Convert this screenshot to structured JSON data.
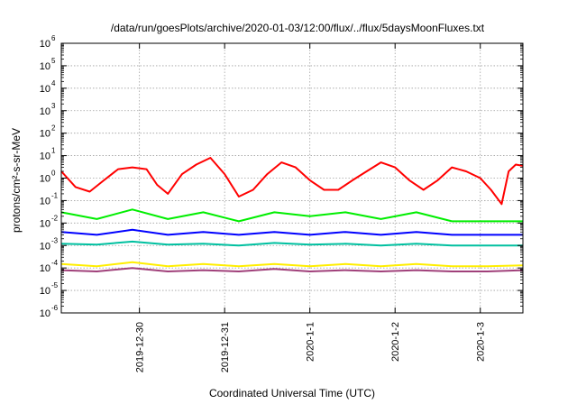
{
  "chart_data": {
    "type": "line",
    "title": "/data/run/goesPlots/archive/2020-01-03/12:00/flux/../flux/5daysMoonFluxes.txt",
    "xlabel": "Coordinated Universal Time (UTC)",
    "ylabel": "protons/cm²-s-sr-MeV",
    "y_scale": "log",
    "ylim_exp": [
      -6,
      6
    ],
    "y_tick_base": "10",
    "y_tick_exponents": [
      "-6",
      "-5",
      "-4",
      "-3",
      "-2",
      "-1",
      "0",
      "1",
      "2",
      "3",
      "4",
      "5",
      "6"
    ],
    "xlim": [
      "2019-12-29T02:00",
      "2020-01-03T12:00"
    ],
    "x_ticks": [
      {
        "date": "2019-12-30T00:00",
        "label": "2019-12-30"
      },
      {
        "date": "2019-12-31T00:00",
        "label": "2019-12-31"
      },
      {
        "date": "2020-01-01T00:00",
        "label": "2020-1-1"
      },
      {
        "date": "2020-01-02T00:00",
        "label": "2020-1-2"
      },
      {
        "date": "2020-01-03T00:00",
        "label": "2020-1-3"
      }
    ],
    "grid": true,
    "legend": "none",
    "series": [
      {
        "color": "#ff0000",
        "x": [
          "2019-12-29T02:00",
          "2019-12-29T06:00",
          "2019-12-29T10:00",
          "2019-12-29T14:00",
          "2019-12-29T18:00",
          "2019-12-29T22:00",
          "2019-12-30T02:00",
          "2019-12-30T05:00",
          "2019-12-30T08:00",
          "2019-12-30T12:00",
          "2019-12-30T16:00",
          "2019-12-30T20:00",
          "2019-12-31T00:00",
          "2019-12-31T04:00",
          "2019-12-31T08:00",
          "2019-12-31T12:00",
          "2019-12-31T16:00",
          "2019-12-31T20:00",
          "2020-01-01T00:00",
          "2020-01-01T04:00",
          "2020-01-01T08:00",
          "2020-01-01T12:00",
          "2020-01-01T16:00",
          "2020-01-01T20:00",
          "2020-01-02T00:00",
          "2020-01-02T04:00",
          "2020-01-02T08:00",
          "2020-01-02T12:00",
          "2020-01-02T16:00",
          "2020-01-02T20:00",
          "2020-01-03T00:00",
          "2020-01-03T03:00",
          "2020-01-03T06:00",
          "2020-01-03T08:00",
          "2020-01-03T10:00",
          "2020-01-03T12:00"
        ],
        "values": [
          2.0,
          0.4,
          0.25,
          0.8,
          2.5,
          3.0,
          2.5,
          0.5,
          0.2,
          1.5,
          4.0,
          8.0,
          1.5,
          0.15,
          0.3,
          1.5,
          5.0,
          3.0,
          0.8,
          0.3,
          0.3,
          0.8,
          2.0,
          5.0,
          3.0,
          0.8,
          0.3,
          0.8,
          3.0,
          2.0,
          1.0,
          0.3,
          0.07,
          2.0,
          4.0,
          3.5
        ]
      },
      {
        "color": "#00ee00",
        "x": [
          "2019-12-29T02:00",
          "2019-12-29T12:00",
          "2019-12-29T22:00",
          "2019-12-30T08:00",
          "2019-12-30T18:00",
          "2019-12-31T04:00",
          "2019-12-31T14:00",
          "2020-01-01T00:00",
          "2020-01-01T10:00",
          "2020-01-01T20:00",
          "2020-01-02T06:00",
          "2020-01-02T16:00",
          "2020-01-03T02:00",
          "2020-01-03T12:00"
        ],
        "values": [
          0.03,
          0.015,
          0.04,
          0.015,
          0.03,
          0.012,
          0.03,
          0.02,
          0.03,
          0.015,
          0.03,
          0.012,
          0.012,
          0.012
        ]
      },
      {
        "color": "#0000ff",
        "x": [
          "2019-12-29T02:00",
          "2019-12-29T12:00",
          "2019-12-29T22:00",
          "2019-12-30T08:00",
          "2019-12-30T18:00",
          "2019-12-31T04:00",
          "2019-12-31T14:00",
          "2020-01-01T00:00",
          "2020-01-01T10:00",
          "2020-01-01T20:00",
          "2020-01-02T06:00",
          "2020-01-02T16:00",
          "2020-01-03T02:00",
          "2020-01-03T12:00"
        ],
        "values": [
          0.004,
          0.003,
          0.005,
          0.003,
          0.004,
          0.003,
          0.004,
          0.003,
          0.004,
          0.003,
          0.004,
          0.003,
          0.003,
          0.003
        ]
      },
      {
        "color": "#00c0a0",
        "x": [
          "2019-12-29T02:00",
          "2019-12-29T12:00",
          "2019-12-29T22:00",
          "2019-12-30T08:00",
          "2019-12-30T18:00",
          "2019-12-31T04:00",
          "2019-12-31T14:00",
          "2020-01-01T00:00",
          "2020-01-01T10:00",
          "2020-01-01T20:00",
          "2020-01-02T06:00",
          "2020-01-02T16:00",
          "2020-01-03T02:00",
          "2020-01-03T12:00"
        ],
        "values": [
          0.0012,
          0.0011,
          0.0015,
          0.0011,
          0.0012,
          0.001,
          0.0013,
          0.0011,
          0.0012,
          0.001,
          0.0012,
          0.001,
          0.001,
          0.001
        ]
      },
      {
        "color": "#ffee00",
        "x": [
          "2019-12-29T02:00",
          "2019-12-29T12:00",
          "2019-12-29T22:00",
          "2019-12-30T08:00",
          "2019-12-30T18:00",
          "2019-12-31T04:00",
          "2019-12-31T14:00",
          "2020-01-01T00:00",
          "2020-01-01T10:00",
          "2020-01-01T20:00",
          "2020-01-02T06:00",
          "2020-01-02T16:00",
          "2020-01-03T02:00",
          "2020-01-03T12:00"
        ],
        "values": [
          0.00015,
          0.00012,
          0.00018,
          0.00012,
          0.00015,
          0.00012,
          0.00015,
          0.00012,
          0.00015,
          0.00012,
          0.00015,
          0.00012,
          0.00012,
          0.00013
        ]
      },
      {
        "color": "#a0407a",
        "x": [
          "2019-12-29T02:00",
          "2019-12-29T12:00",
          "2019-12-29T22:00",
          "2019-12-30T08:00",
          "2019-12-30T18:00",
          "2019-12-31T04:00",
          "2019-12-31T14:00",
          "2020-01-01T00:00",
          "2020-01-01T10:00",
          "2020-01-01T20:00",
          "2020-01-02T06:00",
          "2020-01-02T16:00",
          "2020-01-03T02:00",
          "2020-01-03T12:00"
        ],
        "values": [
          8e-05,
          7e-05,
          0.0001,
          7e-05,
          8e-05,
          7e-05,
          9e-05,
          7e-05,
          8e-05,
          7e-05,
          8e-05,
          7e-05,
          7e-05,
          8e-05
        ]
      }
    ]
  }
}
